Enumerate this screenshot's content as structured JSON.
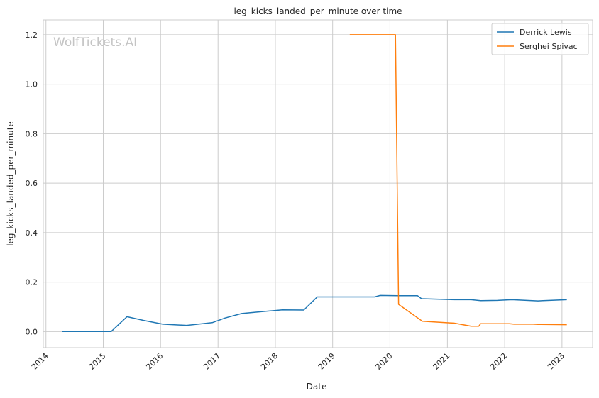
{
  "watermark": "WolfTickets.AI",
  "chart_data": {
    "type": "line",
    "title": "leg_kicks_landed_per_minute over time",
    "xlabel": "Date",
    "ylabel": "leg_kicks_landed_per_minute",
    "xlim": [
      "2013-12-15",
      "2023-07-15"
    ],
    "ylim": [
      -0.065,
      1.26
    ],
    "x_ticks": [
      "2014",
      "2015",
      "2016",
      "2017",
      "2018",
      "2019",
      "2020",
      "2021",
      "2022",
      "2023"
    ],
    "y_ticks": [
      "0.0",
      "0.2",
      "0.4",
      "0.6",
      "0.8",
      "1.0",
      "1.2"
    ],
    "grid": true,
    "legend_position": "top-right",
    "series": [
      {
        "name": "Derrick Lewis",
        "color": "#1f77b4",
        "points": [
          [
            "2014-04-15",
            0.0
          ],
          [
            "2015-02-20",
            0.0
          ],
          [
            "2015-06-01",
            0.06
          ],
          [
            "2015-09-15",
            0.045
          ],
          [
            "2016-01-15",
            0.03
          ],
          [
            "2016-06-15",
            0.025
          ],
          [
            "2016-11-25",
            0.036
          ],
          [
            "2017-02-15",
            0.055
          ],
          [
            "2017-06-01",
            0.073
          ],
          [
            "2017-10-01",
            0.08
          ],
          [
            "2018-02-15",
            0.088
          ],
          [
            "2018-07-01",
            0.087
          ],
          [
            "2018-09-25",
            0.14
          ],
          [
            "2019-05-01",
            0.14
          ],
          [
            "2019-09-25",
            0.14
          ],
          [
            "2019-10-31",
            0.146
          ],
          [
            "2020-02-20",
            0.145
          ],
          [
            "2020-06-25",
            0.145
          ],
          [
            "2020-07-20",
            0.133
          ],
          [
            "2021-02-15",
            0.129
          ],
          [
            "2021-06-01",
            0.129
          ],
          [
            "2021-08-01",
            0.125
          ],
          [
            "2021-11-15",
            0.126
          ],
          [
            "2022-02-15",
            0.129
          ],
          [
            "2022-08-01",
            0.124
          ],
          [
            "2023-02-01",
            0.129
          ]
        ]
      },
      {
        "name": "Serghei Spivac",
        "color": "#ff7f0e",
        "points": [
          [
            "2019-04-20",
            1.2
          ],
          [
            "2020-01-20",
            1.2
          ],
          [
            "2020-02-05",
            1.2
          ],
          [
            "2020-02-25",
            0.11
          ],
          [
            "2020-07-25",
            0.042
          ],
          [
            "2021-02-15",
            0.034
          ],
          [
            "2021-06-01",
            0.022
          ],
          [
            "2021-07-20",
            0.022
          ],
          [
            "2021-08-01",
            0.032
          ],
          [
            "2022-02-01",
            0.032
          ],
          [
            "2022-03-01",
            0.03
          ],
          [
            "2022-07-01",
            0.03
          ],
          [
            "2022-08-01",
            0.029
          ],
          [
            "2023-02-01",
            0.028
          ]
        ]
      }
    ]
  }
}
